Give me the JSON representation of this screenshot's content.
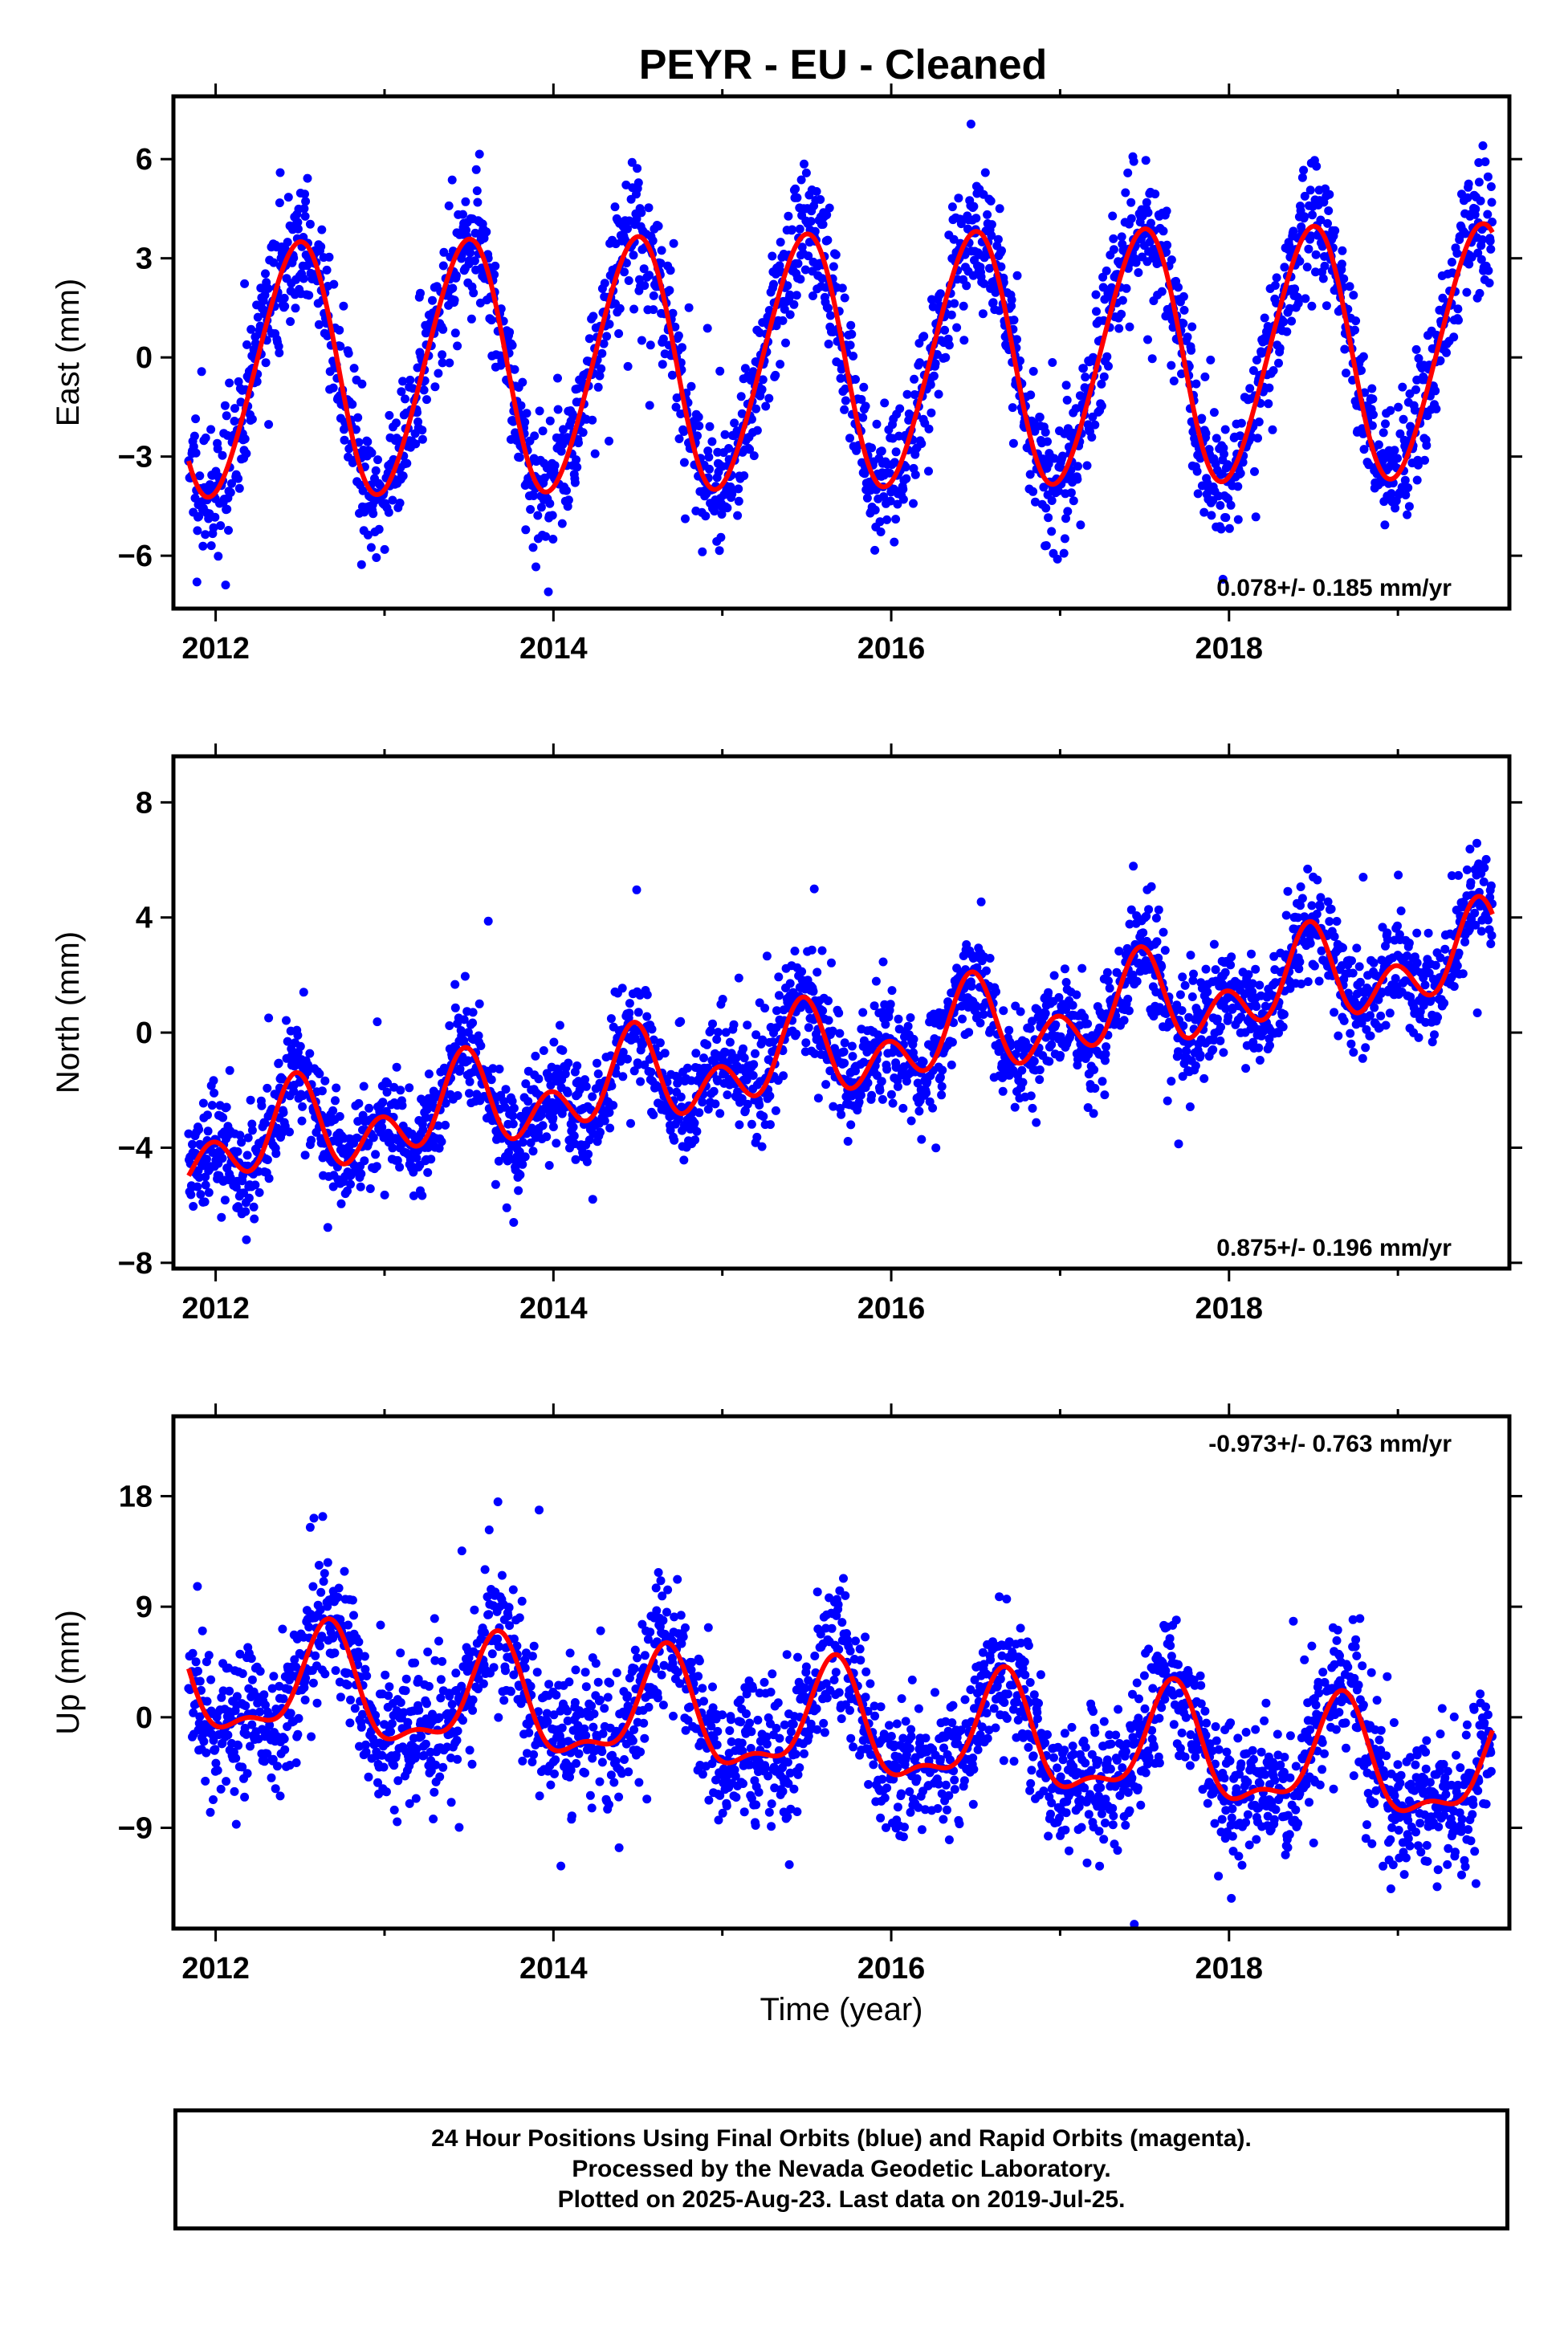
{
  "title": "PEYR  - EU - Cleaned",
  "colors": {
    "points": "#0000ff",
    "fit": "#ff0000",
    "frame": "#000000"
  },
  "xlabel": "Time (year)",
  "footer": {
    "line1": "24 Hour Positions Using Final Orbits (blue) and Rapid Orbits (magenta).",
    "line2": "Processed by the Nevada Geodetic Laboratory.",
    "line3": "Plotted on 2025-Aug-23. Last data on 2019-Jul-25."
  },
  "chart_data": [
    {
      "type": "scatter",
      "ylabel": "East (mm)",
      "rate_label": "0.078+/- 0.185 mm/yr",
      "rate_position": "bottom-right",
      "xlim": [
        2011.75,
        2019.66
      ],
      "ylim": [
        -7.6,
        7.9
      ],
      "xticks": [
        2012,
        2014,
        2016,
        2018
      ],
      "yticks": [
        -6,
        -3,
        0,
        3,
        6
      ],
      "series": [
        {
          "kind": "points",
          "color": "blue",
          "start": 2011.84,
          "end": 2019.56,
          "model": {
            "offset": -0.4,
            "trend": 0.078,
            "annual_amp": 3.8,
            "annual_peak": 0.48,
            "semiannual_amp": 0.3,
            "semiannual_peak": 0.1
          },
          "scatter_sd": 1.25
        },
        {
          "kind": "fit",
          "color": "red",
          "start": 2011.84,
          "end": 2019.56
        }
      ]
    },
    {
      "type": "scatter",
      "ylabel": "North (mm)",
      "rate_label": "0.875+/- 0.196 mm/yr",
      "rate_position": "bottom-right",
      "xlim": [
        2011.75,
        2019.66
      ],
      "ylim": [
        -8.2,
        9.6
      ],
      "xticks": [
        2012,
        2014,
        2016,
        2018
      ],
      "yticks": [
        -8,
        -4,
        0,
        4,
        8
      ],
      "series": [
        {
          "kind": "points",
          "color": "blue",
          "start": 2011.84,
          "end": 2019.56,
          "model": {
            "offset": -3.9,
            "trend": 0.875,
            "annual_amp": 1.0,
            "annual_peak": 0.46,
            "semiannual_amp": 1.1,
            "semiannual_peak": 0.48
          },
          "scatter_sd": 1.15
        },
        {
          "kind": "fit",
          "color": "red",
          "start": 2011.84,
          "end": 2019.56
        }
      ]
    },
    {
      "type": "scatter",
      "ylabel": "Up (mm)",
      "rate_label": "-0.973+/- 0.763 mm/yr",
      "rate_position": "top-right",
      "xlim": [
        2011.75,
        2019.66
      ],
      "ylim": [
        -17.2,
        24.5
      ],
      "xticks": [
        2012,
        2014,
        2016,
        2018
      ],
      "yticks": [
        -9,
        0,
        9,
        18
      ],
      "series": [
        {
          "kind": "points",
          "color": "blue",
          "start": 2011.84,
          "end": 2019.56,
          "model": {
            "offset": 2.7,
            "trend": -0.973,
            "annual_amp": 4.3,
            "annual_peak": 0.66,
            "semiannual_amp": 1.7,
            "semiannual_peak": 0.18
          },
          "scatter_sd": 3.6
        },
        {
          "kind": "fit",
          "color": "red",
          "start": 2011.84,
          "end": 2019.56
        }
      ]
    }
  ]
}
